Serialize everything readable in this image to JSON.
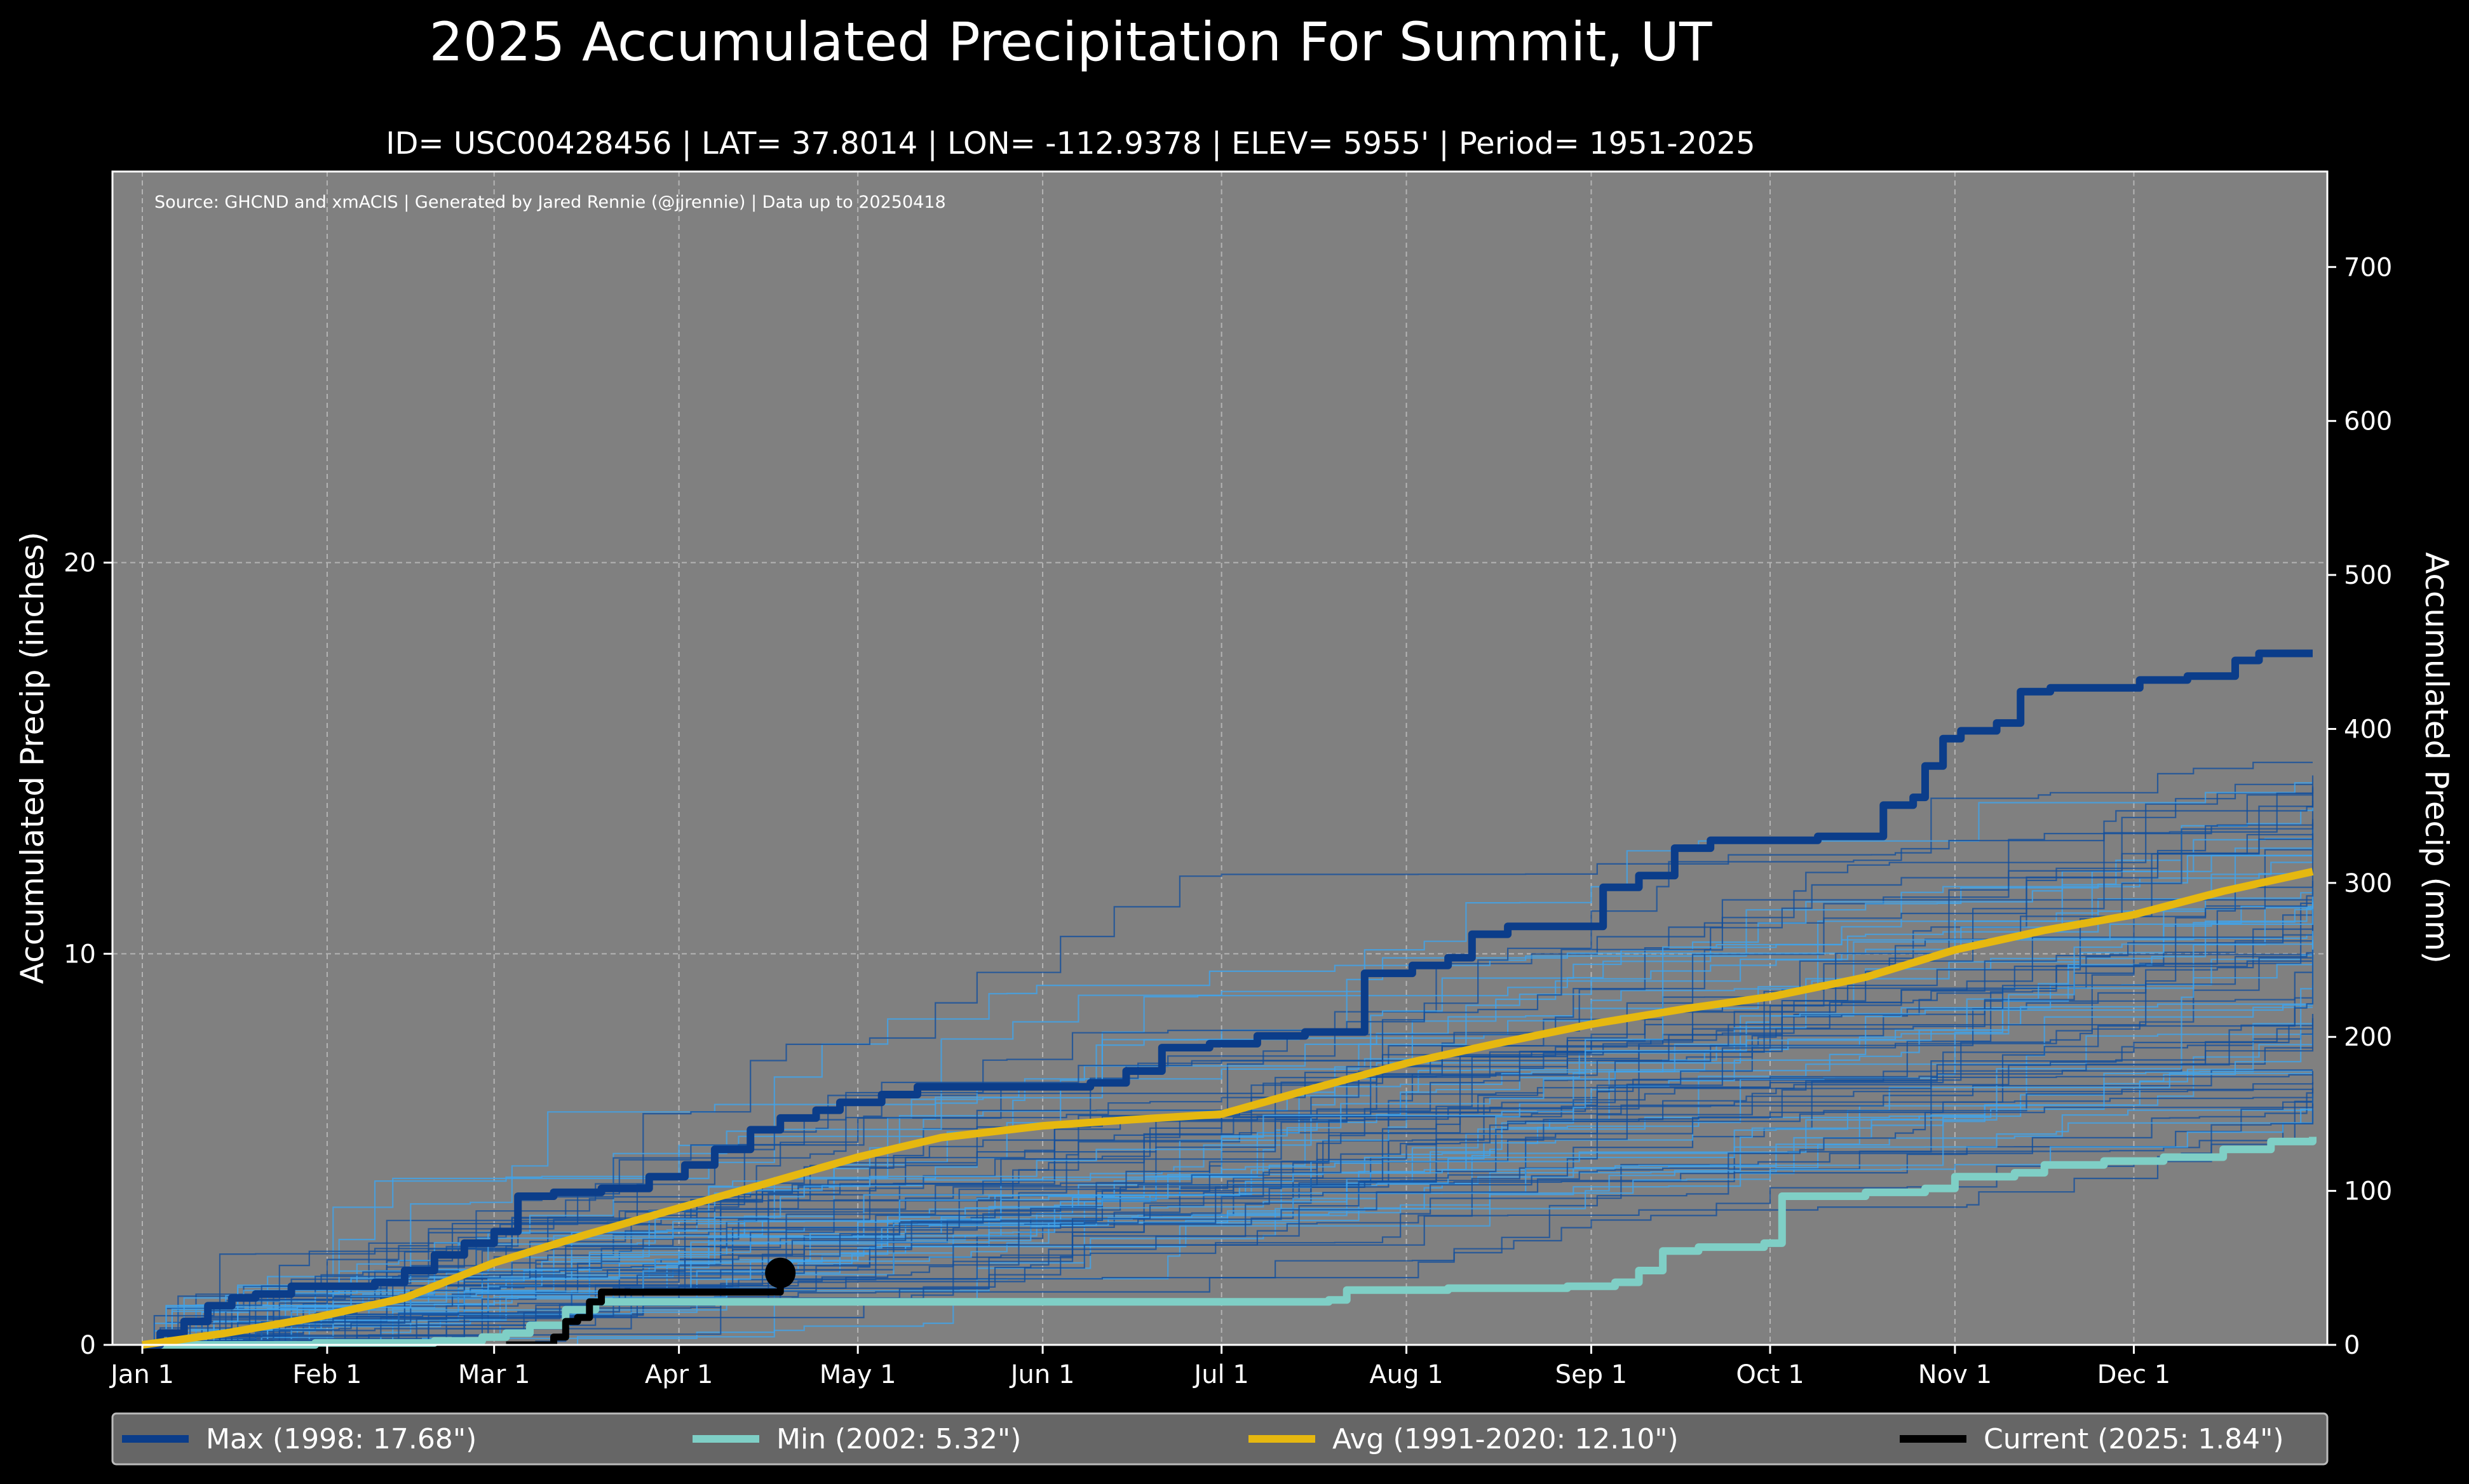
{
  "header": {
    "title": "2025 Accumulated Precipitation For Summit, UT",
    "subtitle": "ID= USC00428456 | LAT= 37.8014 | LON= -112.9378 | ELEV= 5955' | Period= 1951-2025",
    "source": "Source: GHCND and xmACIS | Generated by Jared Rennie (@jjrennie) | Data up to 20250418"
  },
  "colors": {
    "background": "#000000",
    "plot_background": "#808080",
    "grid": "#b4b4b4",
    "max": "#0b3d8a",
    "min": "#7fcfc6",
    "avg": "#e6b810",
    "current": "#000000",
    "history_light": "#3ea4ec",
    "history_dark": "#134f9c",
    "legend_background": "#666666"
  },
  "chart_data": {
    "type": "line",
    "xlabel": "",
    "ylabel": "Accumulated Precip (inches)",
    "ylabel_right": "Accumulated Precip (mm)",
    "x_unit": "day of year",
    "xlim": [
      1,
      365
    ],
    "ylim": [
      0,
      30
    ],
    "ylim_right_mm": [
      0,
      762
    ],
    "grid": true,
    "legend_position": "bottom",
    "month_ticks": [
      {
        "label": "Jan 1",
        "day": 1
      },
      {
        "label": "Feb 1",
        "day": 32
      },
      {
        "label": "Mar 1",
        "day": 60
      },
      {
        "label": "Apr 1",
        "day": 91
      },
      {
        "label": "May 1",
        "day": 121
      },
      {
        "label": "Jun 1",
        "day": 152
      },
      {
        "label": "Jul 1",
        "day": 182
      },
      {
        "label": "Aug 1",
        "day": 213
      },
      {
        "label": "Sep 1",
        "day": 244
      },
      {
        "label": "Oct 1",
        "day": 274
      },
      {
        "label": "Nov 1",
        "day": 305
      },
      {
        "label": "Dec 1",
        "day": 335
      }
    ],
    "y_ticks": [
      "0",
      "10",
      "20"
    ],
    "y_tick_values": [
      0,
      10,
      20
    ],
    "y_ticks_right": [
      "0",
      "100",
      "200",
      "300",
      "400",
      "500",
      "600",
      "700"
    ],
    "y_tick_values_right": [
      0,
      100,
      200,
      300,
      400,
      500,
      600,
      700
    ],
    "historical_years_count": 73,
    "series": [
      {
        "name": "Max (1998:  17.68\")",
        "key": "max",
        "points": [
          [
            1,
            0
          ],
          [
            4,
            0.3
          ],
          [
            8,
            0.6
          ],
          [
            12,
            1.0
          ],
          [
            16,
            1.2
          ],
          [
            20,
            1.3
          ],
          [
            26,
            1.5
          ],
          [
            32,
            1.5
          ],
          [
            40,
            1.6
          ],
          [
            45,
            1.9
          ],
          [
            50,
            2.3
          ],
          [
            55,
            2.6
          ],
          [
            60,
            2.9
          ],
          [
            64,
            3.8
          ],
          [
            70,
            3.9
          ],
          [
            78,
            4.0
          ],
          [
            86,
            4.3
          ],
          [
            92,
            4.6
          ],
          [
            97,
            5.0
          ],
          [
            103,
            5.5
          ],
          [
            108,
            5.8
          ],
          [
            114,
            6.0
          ],
          [
            118,
            6.2
          ],
          [
            125,
            6.4
          ],
          [
            131,
            6.6
          ],
          [
            140,
            6.6
          ],
          [
            150,
            6.6
          ],
          [
            160,
            6.7
          ],
          [
            166,
            7.0
          ],
          [
            172,
            7.6
          ],
          [
            180,
            7.7
          ],
          [
            188,
            7.9
          ],
          [
            196,
            8.0
          ],
          [
            204,
            8.0
          ],
          [
            206,
            9.5
          ],
          [
            214,
            9.7
          ],
          [
            220,
            9.9
          ],
          [
            224,
            10.5
          ],
          [
            230,
            10.7
          ],
          [
            240,
            10.7
          ],
          [
            246,
            11.7
          ],
          [
            252,
            12.0
          ],
          [
            258,
            12.7
          ],
          [
            264,
            12.9
          ],
          [
            272,
            12.9
          ],
          [
            282,
            13.0
          ],
          [
            290,
            13.0
          ],
          [
            293,
            13.8
          ],
          [
            298,
            14.0
          ],
          [
            300,
            14.8
          ],
          [
            303,
            15.5
          ],
          [
            306,
            15.7
          ],
          [
            312,
            15.9
          ],
          [
            316,
            16.7
          ],
          [
            321,
            16.8
          ],
          [
            330,
            16.8
          ],
          [
            336,
            17.0
          ],
          [
            344,
            17.1
          ],
          [
            352,
            17.5
          ],
          [
            356,
            17.68
          ],
          [
            365,
            17.68
          ]
        ]
      },
      {
        "name": "Min (2002:   5.32\")",
        "key": "min",
        "points": [
          [
            1,
            0
          ],
          [
            20,
            0
          ],
          [
            30,
            0.05
          ],
          [
            50,
            0.1
          ],
          [
            58,
            0.2
          ],
          [
            62,
            0.3
          ],
          [
            66,
            0.5
          ],
          [
            72,
            0.9
          ],
          [
            77,
            1.1
          ],
          [
            80,
            1.1
          ],
          [
            100,
            1.1
          ],
          [
            140,
            1.1
          ],
          [
            180,
            1.1
          ],
          [
            200,
            1.15
          ],
          [
            203,
            1.4
          ],
          [
            220,
            1.45
          ],
          [
            240,
            1.5
          ],
          [
            248,
            1.6
          ],
          [
            252,
            1.9
          ],
          [
            256,
            2.4
          ],
          [
            262,
            2.5
          ],
          [
            270,
            2.5
          ],
          [
            273,
            2.6
          ],
          [
            276,
            3.8
          ],
          [
            290,
            3.9
          ],
          [
            300,
            4.0
          ],
          [
            305,
            4.3
          ],
          [
            315,
            4.4
          ],
          [
            320,
            4.6
          ],
          [
            330,
            4.7
          ],
          [
            340,
            4.8
          ],
          [
            350,
            5.0
          ],
          [
            358,
            5.2
          ],
          [
            365,
            5.32
          ]
        ]
      },
      {
        "name": "Avg (1991-2020:  12.10\")",
        "key": "avg",
        "points": [
          [
            1,
            0
          ],
          [
            15,
            0.3
          ],
          [
            30,
            0.7
          ],
          [
            45,
            1.2
          ],
          [
            60,
            2.1
          ],
          [
            75,
            2.8
          ],
          [
            91,
            3.5
          ],
          [
            105,
            4.1
          ],
          [
            121,
            4.8
          ],
          [
            135,
            5.3
          ],
          [
            152,
            5.6
          ],
          [
            166,
            5.75
          ],
          [
            182,
            5.9
          ],
          [
            196,
            6.5
          ],
          [
            213,
            7.2
          ],
          [
            228,
            7.7
          ],
          [
            244,
            8.2
          ],
          [
            260,
            8.6
          ],
          [
            274,
            8.9
          ],
          [
            290,
            9.4
          ],
          [
            305,
            10.1
          ],
          [
            320,
            10.6
          ],
          [
            335,
            11.0
          ],
          [
            350,
            11.6
          ],
          [
            365,
            12.1
          ]
        ]
      },
      {
        "name": "Current (2025:   1.84\")",
        "key": "current",
        "points": [
          [
            62,
            0
          ],
          [
            69,
            0
          ],
          [
            70,
            0.2
          ],
          [
            72,
            0.6
          ],
          [
            74,
            0.7
          ],
          [
            76,
            1.1
          ],
          [
            78,
            1.35
          ],
          [
            90,
            1.35
          ],
          [
            100,
            1.35
          ],
          [
            108,
            1.35
          ],
          [
            108,
            1.84
          ]
        ],
        "marker": {
          "day": 108,
          "value": 1.84
        }
      }
    ]
  }
}
